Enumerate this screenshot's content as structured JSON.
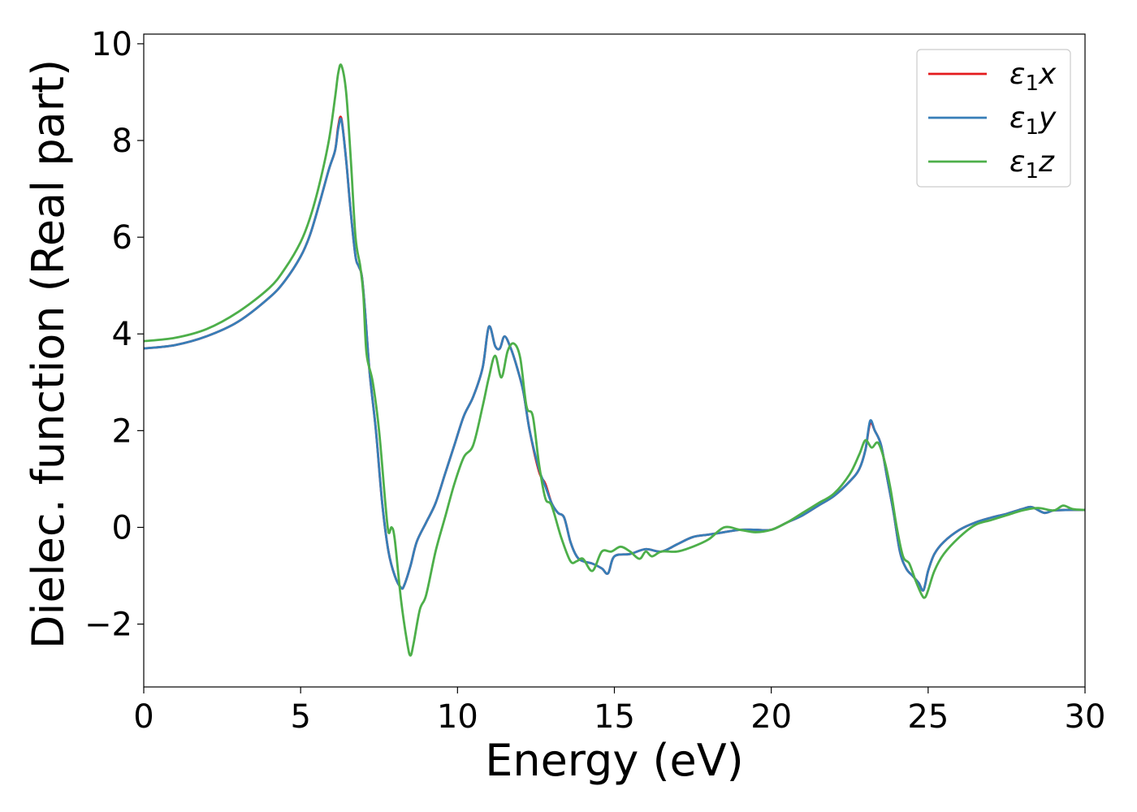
{
  "chart_data": {
    "type": "line",
    "title": "",
    "xlabel": "Energy (eV)",
    "ylabel": "Dielec. function (Real part)",
    "xlim": [
      0,
      30
    ],
    "ylim": [
      -3.3,
      10.2
    ],
    "xticks": [
      0,
      5,
      10,
      15,
      20,
      25,
      30
    ],
    "xtick_labels": [
      "0",
      "5",
      "10",
      "15",
      "20",
      "25",
      "30"
    ],
    "yticks": [
      -2,
      0,
      2,
      4,
      6,
      8,
      10
    ],
    "ytick_labels": [
      "−2",
      "0",
      "2",
      "4",
      "6",
      "8",
      "10"
    ],
    "grid": false,
    "legend_position": "top-right",
    "series": [
      {
        "name": "ε1x",
        "legend_main": "ε",
        "legend_sub": "1",
        "legend_suffix": "x",
        "color": "#e41a1c",
        "x": [
          0,
          1,
          2,
          3,
          4,
          4.5,
          5,
          5.3,
          5.6,
          5.9,
          6.1,
          6.2,
          6.3,
          6.45,
          6.6,
          6.75,
          6.85,
          6.95,
          7.05,
          7.2,
          7.4,
          7.6,
          7.8,
          8.0,
          8.2,
          8.3,
          8.5,
          8.7,
          9.0,
          9.3,
          9.6,
          9.9,
          10.2,
          10.5,
          10.8,
          11.0,
          11.2,
          11.35,
          11.5,
          11.7,
          11.9,
          12.1,
          12.3,
          12.6,
          12.8,
          13.0,
          13.2,
          13.4,
          13.6,
          13.8,
          14.0,
          14.3,
          14.6,
          14.8,
          15.0,
          15.5,
          16.0,
          16.5,
          17.0,
          17.5,
          18.0,
          18.5,
          19.0,
          19.5,
          20.0,
          20.5,
          21.0,
          21.5,
          22.0,
          22.5,
          22.8,
          23.0,
          23.15,
          23.3,
          23.5,
          23.7,
          23.9,
          24.1,
          24.3,
          24.5,
          24.7,
          24.85,
          25.0,
          25.2,
          25.5,
          26.0,
          26.5,
          27.0,
          27.5,
          28.0,
          28.3,
          28.7,
          29.0,
          29.5,
          30.0
        ],
        "y": [
          3.7,
          3.77,
          3.95,
          4.25,
          4.75,
          5.1,
          5.6,
          6.05,
          6.7,
          7.4,
          7.8,
          8.3,
          8.45,
          7.6,
          6.5,
          5.6,
          5.4,
          5.2,
          4.5,
          3.2,
          2.0,
          0.5,
          -0.5,
          -1.0,
          -1.25,
          -1.2,
          -0.8,
          -0.3,
          0.1,
          0.5,
          1.1,
          1.7,
          2.3,
          2.7,
          3.3,
          4.15,
          3.75,
          3.7,
          3.95,
          3.7,
          3.3,
          2.8,
          2.0,
          1.15,
          0.9,
          0.5,
          0.3,
          0.2,
          -0.3,
          -0.6,
          -0.7,
          -0.75,
          -0.85,
          -0.95,
          -0.6,
          -0.55,
          -0.45,
          -0.5,
          -0.35,
          -0.2,
          -0.15,
          -0.1,
          -0.05,
          -0.05,
          -0.05,
          0.1,
          0.25,
          0.45,
          0.65,
          0.95,
          1.2,
          1.6,
          2.15,
          2.0,
          1.7,
          1.0,
          0.3,
          -0.5,
          -0.85,
          -1.0,
          -1.15,
          -1.3,
          -0.9,
          -0.55,
          -0.3,
          -0.05,
          0.1,
          0.2,
          0.28,
          0.38,
          0.42,
          0.3,
          0.35,
          0.36,
          0.36
        ]
      },
      {
        "name": "ε1y",
        "legend_main": "ε",
        "legend_sub": "1",
        "legend_suffix": "y",
        "color": "#377eb8",
        "x": [
          0,
          1,
          2,
          3,
          4,
          4.5,
          5,
          5.3,
          5.6,
          5.9,
          6.1,
          6.2,
          6.3,
          6.45,
          6.6,
          6.75,
          6.85,
          6.95,
          7.05,
          7.2,
          7.4,
          7.6,
          7.8,
          8.0,
          8.2,
          8.3,
          8.5,
          8.7,
          9.0,
          9.3,
          9.6,
          9.9,
          10.2,
          10.5,
          10.8,
          11.0,
          11.2,
          11.35,
          11.5,
          11.7,
          11.9,
          12.1,
          12.3,
          12.6,
          12.8,
          13.0,
          13.2,
          13.4,
          13.6,
          13.8,
          14.0,
          14.3,
          14.6,
          14.8,
          15.0,
          15.5,
          16.0,
          16.5,
          17.0,
          17.5,
          18.0,
          18.5,
          19.0,
          19.5,
          20.0,
          20.5,
          21.0,
          21.5,
          22.0,
          22.5,
          22.8,
          23.0,
          23.15,
          23.3,
          23.5,
          23.7,
          23.9,
          24.1,
          24.3,
          24.5,
          24.7,
          24.85,
          25.0,
          25.2,
          25.5,
          26.0,
          26.5,
          27.0,
          27.5,
          28.0,
          28.3,
          28.7,
          29.0,
          29.5,
          30.0
        ],
        "y": [
          3.7,
          3.77,
          3.95,
          4.25,
          4.75,
          5.1,
          5.6,
          6.05,
          6.7,
          7.4,
          7.8,
          8.25,
          8.42,
          7.6,
          6.5,
          5.6,
          5.4,
          5.2,
          4.5,
          3.2,
          2.0,
          0.5,
          -0.5,
          -1.0,
          -1.25,
          -1.2,
          -0.8,
          -0.3,
          0.1,
          0.5,
          1.1,
          1.7,
          2.3,
          2.7,
          3.3,
          4.15,
          3.75,
          3.7,
          3.95,
          3.7,
          3.3,
          2.8,
          2.0,
          1.2,
          0.85,
          0.5,
          0.3,
          0.2,
          -0.3,
          -0.6,
          -0.7,
          -0.75,
          -0.85,
          -0.95,
          -0.6,
          -0.55,
          -0.45,
          -0.5,
          -0.35,
          -0.2,
          -0.15,
          -0.1,
          -0.05,
          -0.05,
          -0.05,
          0.1,
          0.25,
          0.45,
          0.65,
          0.95,
          1.2,
          1.6,
          2.2,
          2.0,
          1.7,
          1.0,
          0.3,
          -0.5,
          -0.85,
          -1.0,
          -1.15,
          -1.3,
          -0.9,
          -0.55,
          -0.3,
          -0.05,
          0.1,
          0.2,
          0.28,
          0.38,
          0.42,
          0.3,
          0.35,
          0.36,
          0.36
        ]
      },
      {
        "name": "ε1z",
        "legend_main": "ε",
        "legend_sub": "1",
        "legend_suffix": "z",
        "color": "#4daf4a",
        "x": [
          0,
          1,
          2,
          3,
          4,
          4.5,
          5,
          5.3,
          5.6,
          5.9,
          6.1,
          6.2,
          6.3,
          6.45,
          6.6,
          6.75,
          6.9,
          7.0,
          7.1,
          7.3,
          7.5,
          7.7,
          7.8,
          7.9,
          8.0,
          8.2,
          8.4,
          8.5,
          8.6,
          8.8,
          9.0,
          9.3,
          9.6,
          9.9,
          10.2,
          10.5,
          10.8,
          11.0,
          11.2,
          11.4,
          11.6,
          11.8,
          12.0,
          12.2,
          12.4,
          12.6,
          12.8,
          13.0,
          13.3,
          13.6,
          13.8,
          14.0,
          14.3,
          14.6,
          14.9,
          15.2,
          15.5,
          15.8,
          16.0,
          16.2,
          16.5,
          17.0,
          17.5,
          18.0,
          18.5,
          19.0,
          19.5,
          20.0,
          20.5,
          21.0,
          21.5,
          22.0,
          22.5,
          22.8,
          23.0,
          23.2,
          23.4,
          23.6,
          23.8,
          24.0,
          24.2,
          24.4,
          24.6,
          24.8,
          24.9,
          25.0,
          25.2,
          25.5,
          26.0,
          26.5,
          27.0,
          27.5,
          28.0,
          28.5,
          29.0,
          29.3,
          29.6,
          30.0
        ],
        "y": [
          3.85,
          3.92,
          4.1,
          4.45,
          4.95,
          5.35,
          5.9,
          6.4,
          7.1,
          8.0,
          8.9,
          9.4,
          9.55,
          9.0,
          7.6,
          6.0,
          5.4,
          4.8,
          3.6,
          3.0,
          2.0,
          0.5,
          -0.1,
          0.0,
          -0.25,
          -1.5,
          -2.4,
          -2.65,
          -2.4,
          -1.7,
          -1.4,
          -0.5,
          0.2,
          0.9,
          1.45,
          1.7,
          2.5,
          3.1,
          3.55,
          3.1,
          3.65,
          3.8,
          3.5,
          2.5,
          2.3,
          1.3,
          0.6,
          0.45,
          -0.2,
          -0.7,
          -0.7,
          -0.65,
          -0.9,
          -0.5,
          -0.5,
          -0.4,
          -0.5,
          -0.65,
          -0.5,
          -0.6,
          -0.5,
          -0.5,
          -0.4,
          -0.25,
          0.0,
          -0.05,
          -0.1,
          -0.05,
          0.1,
          0.3,
          0.5,
          0.7,
          1.1,
          1.5,
          1.8,
          1.65,
          1.75,
          1.4,
          0.8,
          0.0,
          -0.6,
          -0.75,
          -1.1,
          -1.4,
          -1.45,
          -1.3,
          -0.9,
          -0.55,
          -0.2,
          0.05,
          0.15,
          0.25,
          0.35,
          0.4,
          0.35,
          0.45,
          0.38,
          0.36
        ]
      }
    ]
  }
}
